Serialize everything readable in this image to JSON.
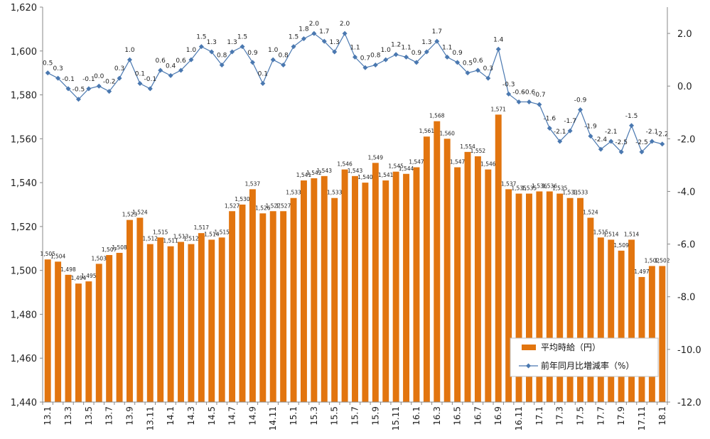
{
  "chart_data": {
    "type": "bar",
    "title": "",
    "xlabel": "",
    "ylabel": "",
    "categories": [
      "13.1",
      "13.2",
      "13.3",
      "13.4",
      "13.5",
      "13.6",
      "13.7",
      "13.8",
      "13.9",
      "13.10",
      "13.11",
      "13.12",
      "14.1",
      "14.2",
      "14.3",
      "14.4",
      "14.5",
      "14.6",
      "14.7",
      "14.8",
      "14.9",
      "14.10",
      "14.11",
      "14.12",
      "15.1",
      "15.2",
      "15.3",
      "15.4",
      "15.5",
      "15.6",
      "15.7",
      "15.8",
      "15.9",
      "15.10",
      "15.11",
      "15.12",
      "16.1",
      "16.2",
      "16.3",
      "16.4",
      "16.5",
      "16.6",
      "16.7",
      "16.8",
      "16.9",
      "16.10",
      "16.11",
      "16.12",
      "17.1",
      "17.2",
      "17.3",
      "17.4",
      "17.5",
      "17.6",
      "17.7",
      "17.8",
      "17.9",
      "17.10",
      "17.11",
      "17.12",
      "18.1"
    ],
    "x_tick_labels": [
      "13.1",
      "13.3",
      "13.5",
      "13.7",
      "13.9",
      "13.11",
      "14.1",
      "14.3",
      "14.5",
      "14.7",
      "14.9",
      "14.11",
      "15.1",
      "15.3",
      "15.5",
      "15.7",
      "15.9",
      "15.11",
      "16.1",
      "16.3",
      "16.5",
      "16.7",
      "16.9",
      "16.11",
      "17.1",
      "17.3",
      "17.5",
      "17.7",
      "17.9",
      "17.11",
      "18.1"
    ],
    "ylim": [
      1440,
      1620
    ],
    "y_ticks": [
      "1,440",
      "1,460",
      "1,480",
      "1,500",
      "1,520",
      "1,540",
      "1,560",
      "1,580",
      "1,600",
      "1,620"
    ],
    "y2lim": [
      -12.0,
      3.0
    ],
    "y2_ticks": [
      "-12.0",
      "-10.0",
      "-8.0",
      "-6.0",
      "-4.0",
      "-2.0",
      "0.0",
      "2.0"
    ],
    "series": [
      {
        "name": "平均時給（円）",
        "kind": "bar",
        "axis": "left",
        "color": "#e2750f",
        "values": [
          1505,
          1504,
          1498,
          1494,
          1495,
          1503,
          1507,
          1508,
          1523,
          1524,
          1512,
          1515,
          1511,
          1513,
          1512,
          1517,
          1514,
          1515,
          1527,
          1530,
          1537,
          1526,
          1527,
          1527,
          1533,
          1541,
          1542,
          1543,
          1533,
          1546,
          1543,
          1540,
          1549,
          1541,
          1545,
          1544,
          1547,
          1561,
          1568,
          1560,
          1547,
          1554,
          1552,
          1546,
          1571,
          1537,
          1535,
          1535,
          1536,
          1536,
          1535,
          1533,
          1533,
          1524,
          1515,
          1514,
          1509,
          1514,
          1497,
          1502,
          1502
        ],
        "labels": [
          "1,505",
          "1,504",
          "1,498",
          "1,494",
          "1,495",
          "1,503",
          "1,507",
          "1,508",
          "1,523",
          "1,524",
          "1,512",
          "1,515",
          "1,511",
          "1,513",
          "1,512",
          "1,517",
          "1,514",
          "1,515",
          "1,527",
          "1,530",
          "1,537",
          "1,526",
          "1,527",
          "1,527",
          "1,533",
          "1,541",
          "1,542",
          "1,543",
          "1,533",
          "1,546",
          "1,543",
          "1,540",
          "1,549",
          "1,541",
          "1,545",
          "1,544",
          "1,547",
          "1,561",
          "1,568",
          "1,560",
          "1,547",
          "1,554",
          "1,552",
          "1,546",
          "1,571",
          "1,537",
          "1,535",
          "1,535",
          "1,536",
          "1,536",
          "1,535",
          "1,533",
          "1,533",
          "1,524",
          "1,515",
          "1,514",
          "1,509",
          "1,514",
          "1,497",
          "1,502",
          "1,502"
        ]
      },
      {
        "name": "前年同月比増減率（%）",
        "kind": "line",
        "axis": "right",
        "color": "#4a78b0",
        "values": [
          0.5,
          0.3,
          -0.1,
          -0.5,
          -0.1,
          0.0,
          -0.2,
          0.3,
          1.0,
          0.1,
          -0.1,
          0.6,
          0.4,
          0.6,
          1.0,
          1.5,
          1.3,
          0.8,
          1.3,
          1.5,
          0.9,
          0.1,
          1.0,
          0.8,
          1.5,
          1.8,
          2.0,
          1.7,
          1.3,
          2.0,
          1.1,
          0.7,
          0.8,
          1.0,
          1.2,
          1.1,
          0.9,
          1.3,
          1.7,
          1.1,
          0.9,
          0.5,
          0.6,
          0.3,
          1.4,
          -0.3,
          -0.6,
          -0.6,
          -0.7,
          -1.6,
          -2.1,
          -1.7,
          -0.9,
          -1.9,
          -2.4,
          -2.1,
          -2.5,
          -1.5,
          -2.5,
          -2.1,
          -2.2
        ],
        "labels": [
          "0.5",
          "0.3",
          "-0.1",
          "-0.5",
          "-0.1",
          "0.0",
          "-0.2",
          "0.3",
          "1.0",
          "0.1",
          "-0.1",
          "0.6",
          "0.4",
          "0.6",
          "1.0",
          "1.5",
          "1.3",
          "0.8",
          "1.3",
          "1.5",
          "0.9",
          "0.1",
          "1.0",
          "0.8",
          "1.5",
          "1.8",
          "2.0",
          "1.7",
          "1.3",
          "2.0",
          "1.1",
          "0.7",
          "0.8",
          "1.0",
          "1.2",
          "1.1",
          "0.9",
          "1.3",
          "1.7",
          "1.1",
          "0.9",
          "0.5",
          "0.6",
          "0.3",
          "1.4",
          "-0.3",
          "-0.6",
          "-0.6",
          "-0.7",
          "-1.6",
          "-2.1",
          "-1.7",
          "-0.9",
          "-1.9",
          "-2.4",
          "-2.1",
          "-2.5",
          "-1.5",
          "-2.5",
          "-2.1",
          "-2.2"
        ]
      }
    ],
    "legend": {
      "position": "bottom-right",
      "items": [
        "平均時給（円）",
        "前年同月比増減率（%）"
      ]
    }
  }
}
